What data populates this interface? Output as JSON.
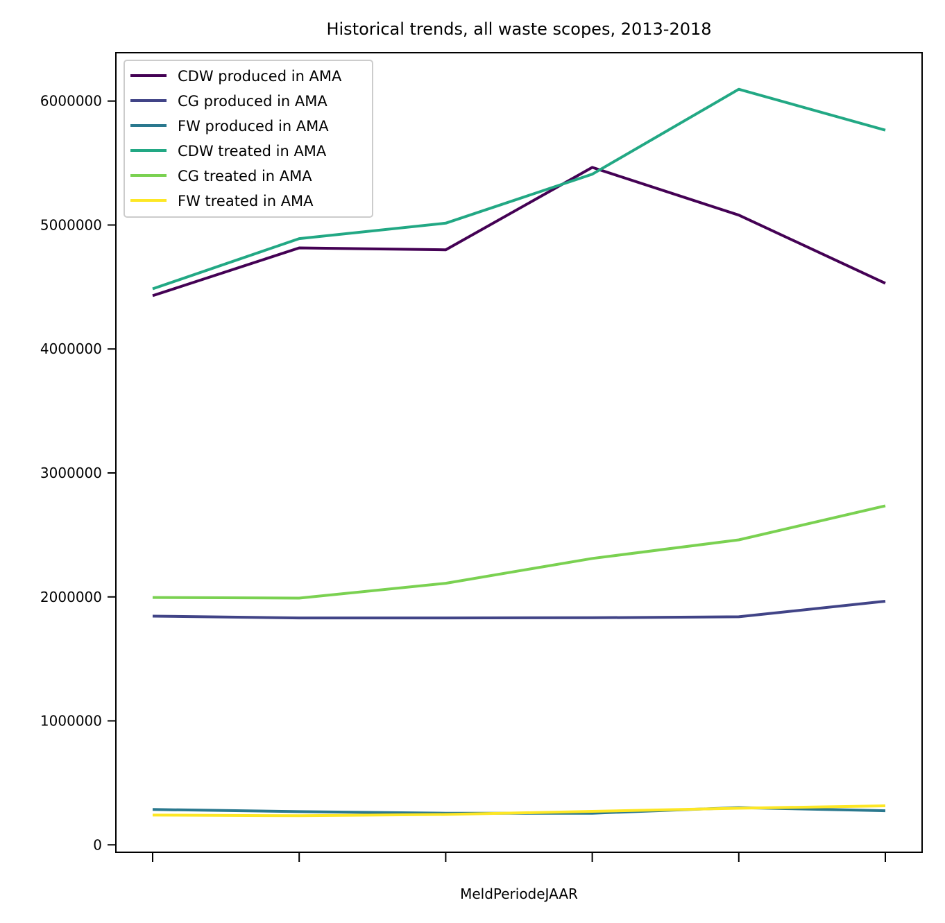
{
  "chart_data": {
    "type": "line",
    "title": "Historical trends, all waste scopes, 2013-2018",
    "xlabel": "MeldPeriodeJAAR",
    "ylabel": "",
    "x": [
      2013,
      2014,
      2015,
      2016,
      2017,
      2018
    ],
    "x_tick_labels_visible": false,
    "ylim": [
      -60000,
      6390000
    ],
    "yticks": [
      0,
      1000000,
      2000000,
      3000000,
      4000000,
      5000000,
      6000000
    ],
    "ytick_labels": [
      "0",
      "1000000",
      "2000000",
      "3000000",
      "4000000",
      "5000000",
      "6000000"
    ],
    "grid": false,
    "legend_position": "top-left",
    "series": [
      {
        "name": "CDW produced in AMA",
        "color": "#440154",
        "values": [
          4430000,
          4815000,
          4800000,
          5465000,
          5080000,
          4530000
        ]
      },
      {
        "name": "CG produced in AMA",
        "color": "#414487",
        "values": [
          1845000,
          1830000,
          1830000,
          1832000,
          1840000,
          1965000
        ]
      },
      {
        "name": "FW produced in AMA",
        "color": "#2a788e",
        "values": [
          285000,
          268000,
          255000,
          255000,
          300000,
          275000
        ]
      },
      {
        "name": "CDW treated in AMA",
        "color": "#22a884",
        "values": [
          4485000,
          4890000,
          5015000,
          5410000,
          6095000,
          5765000
        ]
      },
      {
        "name": "CG treated in AMA",
        "color": "#7ad151",
        "values": [
          1995000,
          1990000,
          2110000,
          2310000,
          2460000,
          2735000
        ]
      },
      {
        "name": "FW treated in AMA",
        "color": "#fde725",
        "values": [
          240000,
          235000,
          245000,
          270000,
          295000,
          315000
        ]
      }
    ]
  }
}
